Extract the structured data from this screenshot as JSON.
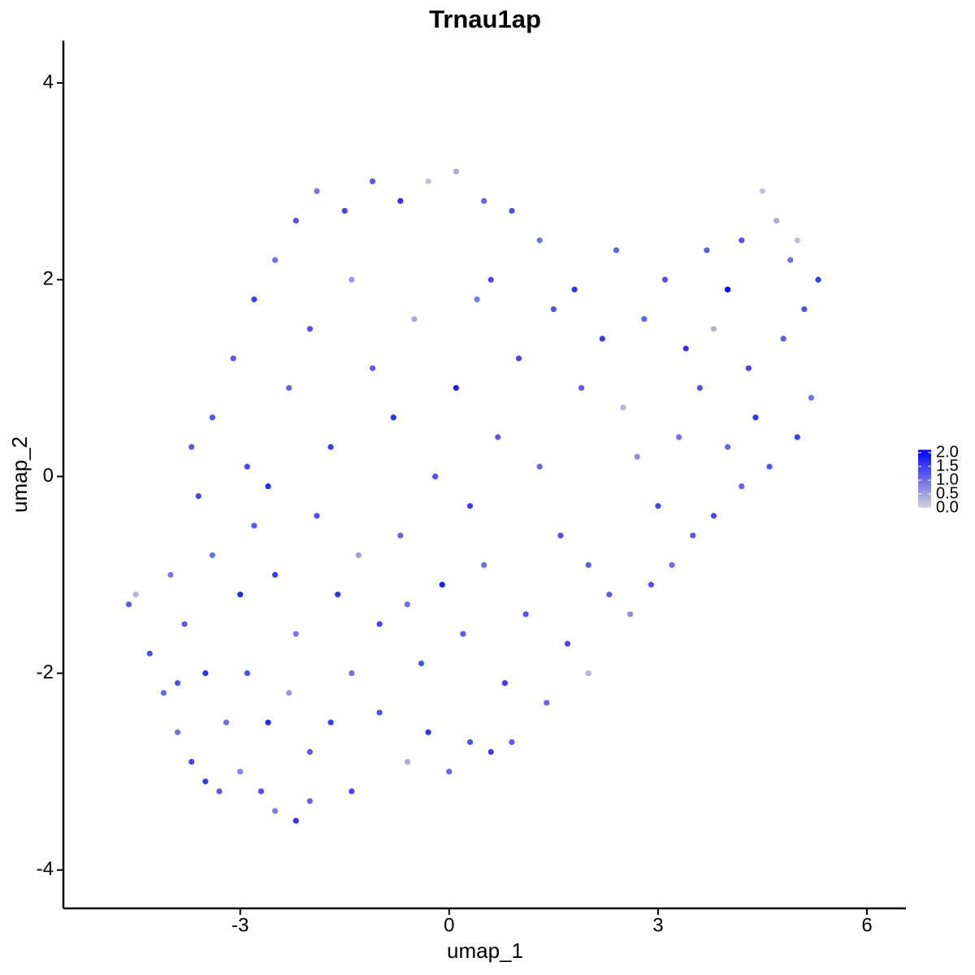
{
  "chart_data": {
    "type": "scatter",
    "title": "Trnau1ap",
    "xlabel": "umap_1",
    "ylabel": "umap_2",
    "xlim": [
      -5.54,
      6.56
    ],
    "ylim": [
      -4.39,
      4.43
    ],
    "xticks": [
      -3,
      0,
      3,
      6
    ],
    "yticks": [
      -4,
      -2,
      0,
      2,
      4
    ],
    "low_color": "#d3d3d3",
    "high_color": "#0000ff",
    "colorlim": [
      0,
      2.1
    ],
    "colorticks": [
      {
        "value": 0,
        "label": "0.0"
      },
      {
        "value": 0.5,
        "label": "0.5"
      },
      {
        "value": 1,
        "label": "1.0"
      },
      {
        "value": 1.5,
        "label": "1.5"
      },
      {
        "value": 2,
        "label": "2.0"
      }
    ],
    "x": [
      -4.6,
      -4.5,
      -4.3,
      -4.1,
      -3.9,
      -3.7,
      -3.5,
      -3.3,
      -3.0,
      -2.7,
      -2.5,
      -2.2,
      -2.0,
      -1.4,
      -3.8,
      -3.5,
      -3.2,
      -2.9,
      -2.6,
      -2.3,
      -2.0,
      -1.7,
      -1.4,
      -1.0,
      -0.6,
      -0.3,
      0.0,
      0.3,
      0.6,
      0.9,
      -3.6,
      -3.4,
      -3.0,
      -2.8,
      -2.5,
      -2.2,
      -1.9,
      -1.6,
      -1.3,
      -1.0,
      -0.7,
      -0.4,
      -0.1,
      0.2,
      0.5,
      0.8,
      1.1,
      1.4,
      1.7,
      2.0,
      2.3,
      2.6,
      2.9,
      3.2,
      3.5,
      3.8,
      4.2,
      4.6,
      5.0,
      5.2,
      -3.4,
      -3.1,
      -2.8,
      -2.5,
      -2.2,
      -1.9,
      -1.5,
      -1.1,
      -0.7,
      -0.3,
      0.1,
      0.5,
      0.9,
      -2.9,
      -2.6,
      -2.3,
      -2.0,
      -1.7,
      -1.4,
      -1.1,
      -0.8,
      -0.5,
      -0.2,
      0.1,
      0.4,
      0.7,
      1.0,
      1.3,
      1.3,
      1.6,
      1.9,
      2.2,
      2.5,
      2.8,
      3.1,
      3.4,
      3.7,
      4.0,
      4.3,
      4.5,
      4.7,
      4.9,
      5.1,
      5.3,
      4.8,
      4.4,
      4.0,
      3.6,
      3.3,
      3.0,
      2.7,
      2.0,
      1.5,
      0.3,
      -0.6,
      -3.9,
      -4.0,
      -3.7,
      3.8,
      4.2,
      5.0,
      1.8,
      2.4,
      0.6
    ],
    "y": [
      -1.3,
      -1.2,
      -1.8,
      -2.2,
      -2.6,
      -2.9,
      -3.1,
      -3.2,
      -3.0,
      -3.2,
      -3.4,
      -3.5,
      -3.3,
      -3.2,
      -1.5,
      -2.0,
      -2.5,
      -2.0,
      -2.5,
      -2.2,
      -2.8,
      -2.5,
      -2.0,
      -2.4,
      -2.9,
      -2.6,
      -3.0,
      -2.7,
      -2.8,
      -2.7,
      -0.2,
      -0.8,
      -1.2,
      -0.5,
      -1.0,
      -1.6,
      -0.4,
      -1.2,
      -0.8,
      -1.5,
      -0.6,
      -1.9,
      -1.1,
      -1.6,
      -0.9,
      -2.1,
      -1.4,
      -2.3,
      -1.7,
      -2.0,
      -1.2,
      -1.4,
      -1.1,
      -0.9,
      -0.6,
      -0.4,
      -0.1,
      0.1,
      0.4,
      0.8,
      0.6,
      1.2,
      1.8,
      2.2,
      2.6,
      2.9,
      2.7,
      3.0,
      2.8,
      3.0,
      3.1,
      2.8,
      2.7,
      0.1,
      -0.1,
      0.9,
      1.5,
      0.3,
      2.0,
      1.1,
      0.6,
      1.6,
      0.0,
      0.9,
      1.8,
      0.4,
      1.2,
      2.4,
      0.1,
      -0.6,
      0.9,
      1.4,
      0.7,
      1.6,
      2.0,
      1.3,
      2.3,
      1.9,
      1.1,
      2.9,
      2.6,
      2.2,
      1.7,
      2.0,
      1.4,
      0.6,
      0.3,
      0.9,
      0.4,
      -0.3,
      0.2,
      -0.9,
      1.7,
      -0.3,
      -1.3,
      -2.1,
      -1.0,
      0.3,
      1.5,
      2.4,
      2.4,
      1.9,
      2.3,
      2.0
    ],
    "values": [
      1.2,
      0.3,
      1.3,
      1.1,
      1.0,
      1.4,
      1.5,
      1.2,
      0.8,
      1.3,
      0.9,
      1.6,
      1.1,
      1.4,
      1.2,
      1.6,
      1.0,
      1.3,
      1.7,
      0.6,
      1.2,
      1.5,
      1.0,
      1.3,
      0.4,
      1.6,
      1.1,
      1.3,
      1.5,
      1.2,
      1.4,
      1.0,
      1.7,
      1.2,
      1.5,
      0.9,
      1.3,
      1.6,
      0.5,
      1.4,
      1.1,
      1.3,
      1.8,
      1.2,
      1.0,
      1.5,
      1.3,
      1.1,
      1.4,
      0.3,
      1.2,
      0.7,
      1.3,
      1.0,
      1.2,
      1.4,
      1.1,
      1.3,
      1.5,
      1.0,
      1.3,
      1.2,
      1.5,
      1.0,
      1.3,
      0.9,
      1.4,
      1.2,
      1.6,
      0.2,
      0.4,
      1.1,
      1.3,
      1.4,
      1.7,
      1.1,
      1.3,
      1.5,
      0.6,
      1.2,
      1.6,
      0.4,
      1.3,
      1.8,
      0.9,
      1.2,
      1.4,
      1.0,
      1.1,
      1.3,
      1.2,
      1.5,
      0.3,
      1.1,
      1.3,
      1.6,
      1.2,
      2.1,
      1.4,
      0.2,
      0.4,
      1.0,
      1.3,
      1.5,
      1.2,
      1.6,
      1.1,
      1.3,
      1.0,
      1.4,
      0.7,
      1.2,
      1.3,
      1.5,
      1.0,
      1.3,
      0.9,
      1.2,
      0.3,
      1.3,
      0.2,
      1.6,
      1.1,
      1.4
    ]
  }
}
